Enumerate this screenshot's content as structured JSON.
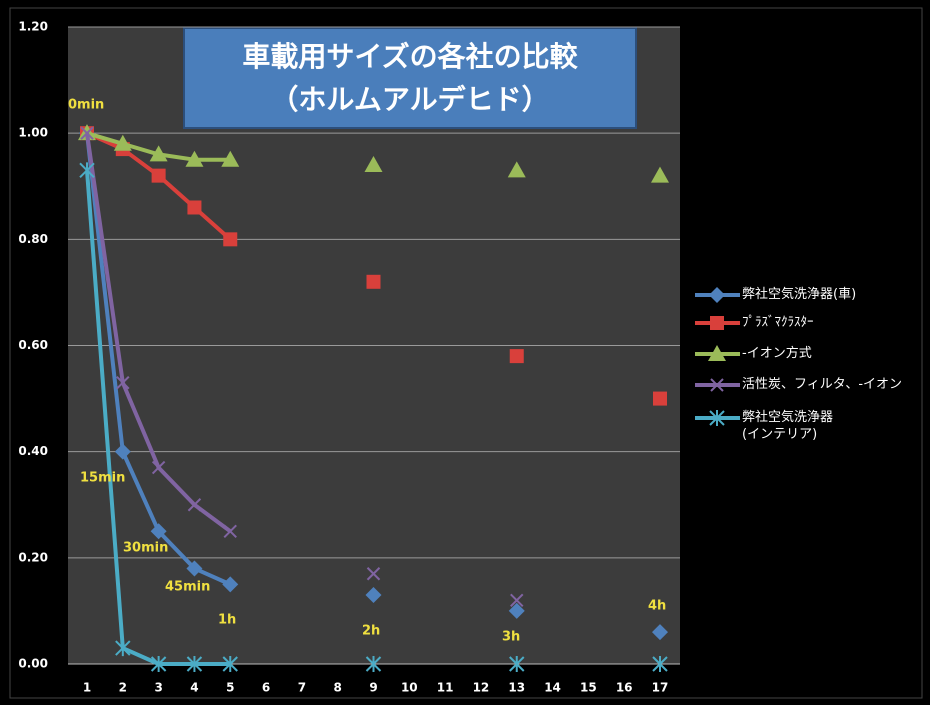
{
  "chart_data": {
    "type": "line",
    "title": "車載用サイズの各社の比較",
    "subtitle": "（ホルムアルデヒド）",
    "categories": [
      "1",
      "2",
      "3",
      "4",
      "5",
      "6",
      "7",
      "8",
      "9",
      "10",
      "11",
      "12",
      "13",
      "14",
      "15",
      "16",
      "17"
    ],
    "ylim": [
      0,
      1.2
    ],
    "yticks": [
      {
        "value": 0,
        "label": "0.00"
      },
      {
        "value": 0.2,
        "label": "0.20"
      },
      {
        "value": 0.4,
        "label": "0.40"
      },
      {
        "value": 0.6,
        "label": "0.60"
      },
      {
        "value": 0.8,
        "label": "0.80"
      },
      {
        "value": 1,
        "label": "1.00"
      },
      {
        "value": 1.2,
        "label": "1.20"
      }
    ],
    "grid": true,
    "legend": "right",
    "series": [
      {
        "name": "弊社空気洗浄器(車)",
        "color": "#4f81bd",
        "marker": "diamond",
        "values": [
          1.0,
          0.4,
          0.25,
          0.18,
          0.15,
          null,
          null,
          null,
          0.13,
          null,
          null,
          null,
          0.1,
          null,
          null,
          null,
          0.06
        ]
      },
      {
        "name": "ﾌﾟﾗｽﾞﾏｸﾗｽﾀｰ",
        "color": "#d9403b",
        "marker": "square",
        "values": [
          1.0,
          0.97,
          0.92,
          0.86,
          0.8,
          null,
          null,
          null,
          0.72,
          null,
          null,
          null,
          0.58,
          null,
          null,
          null,
          0.5
        ]
      },
      {
        "name": "-イオン方式",
        "color": "#9bbb59",
        "marker": "triangle",
        "values": [
          1.0,
          0.98,
          0.96,
          0.95,
          0.95,
          null,
          null,
          null,
          0.94,
          null,
          null,
          null,
          0.93,
          null,
          null,
          null,
          0.92
        ]
      },
      {
        "name": "活性炭、フィルタ、-イオン",
        "color": "#8064a2",
        "marker": "x",
        "values": [
          1.0,
          0.53,
          0.37,
          0.3,
          0.25,
          null,
          null,
          null,
          0.17,
          null,
          null,
          null,
          0.12,
          null,
          null,
          null,
          null
        ]
      },
      {
        "name": "弊社空気洗浄器\n(インテリア)",
        "color": "#4bacc6",
        "marker": "star",
        "values": [
          0.93,
          0.03,
          0.0,
          0.0,
          0.0,
          null,
          null,
          null,
          0.0,
          null,
          null,
          null,
          0.0,
          null,
          null,
          null,
          0.0
        ]
      }
    ],
    "annotations": [
      "0min",
      "15min",
      "30min",
      "45min",
      "1h",
      "2h",
      "3h",
      "4h"
    ]
  }
}
